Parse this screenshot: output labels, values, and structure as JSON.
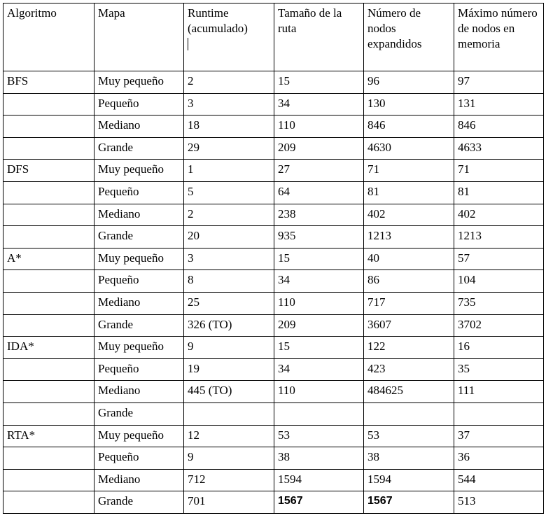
{
  "headers": [
    "Algoritmo",
    "Mapa",
    "Runtime (acumulado)",
    "Tamaño de la ruta",
    "Número de nodos expandidos",
    "Máximo número de nodos en memoria"
  ],
  "groups": [
    {
      "algorithm": "BFS",
      "rows": [
        {
          "map": "Muy pequeño",
          "runtime": "2",
          "path": "15",
          "expanded": "96",
          "memory": "97"
        },
        {
          "map": "Pequeño",
          "runtime": "3",
          "path": "34",
          "expanded": "130",
          "memory": "131"
        },
        {
          "map": "Mediano",
          "runtime": "18",
          "path": "110",
          "expanded": "846",
          "memory": "846"
        },
        {
          "map": "Grande",
          "runtime": "29",
          "path": "209",
          "expanded": "4630",
          "memory": "4633"
        }
      ]
    },
    {
      "algorithm": "DFS",
      "rows": [
        {
          "map": "Muy pequeño",
          "runtime": "1",
          "path": "27",
          "expanded": "71",
          "memory": "71"
        },
        {
          "map": "Pequeño",
          "runtime": "5",
          "path": "64",
          "expanded": "81",
          "memory": "81"
        },
        {
          "map": "Mediano",
          "runtime": "2",
          "path": "238",
          "expanded": "402",
          "memory": "402"
        },
        {
          "map": "Grande",
          "runtime": "20",
          "path": "935",
          "expanded": "1213",
          "memory": "1213"
        }
      ]
    },
    {
      "algorithm": "A*",
      "rows": [
        {
          "map": "Muy pequeño",
          "runtime": "3",
          "path": "15",
          "expanded": "40",
          "memory": "57"
        },
        {
          "map": "Pequeño",
          "runtime": "8",
          "path": "34",
          "expanded": "86",
          "memory": "104"
        },
        {
          "map": "Mediano",
          "runtime": "25",
          "path": "110",
          "expanded": "717",
          "memory": "735"
        },
        {
          "map": "Grande",
          "runtime": "326 (TO)",
          "path": "209",
          "expanded": "3607",
          "memory": "3702"
        }
      ]
    },
    {
      "algorithm": "IDA*",
      "rows": [
        {
          "map": "Muy pequeño",
          "runtime": "9",
          "path": "15",
          "expanded": "122",
          "memory": "16"
        },
        {
          "map": "Pequeño",
          "runtime": "19",
          "path": "34",
          "expanded": "423",
          "memory": "35"
        },
        {
          "map": "Mediano",
          "runtime": "445 (TO)",
          "path": "110",
          "expanded": "484625",
          "memory": "111"
        },
        {
          "map": "Grande",
          "runtime": "",
          "path": "",
          "expanded": "",
          "memory": ""
        }
      ]
    },
    {
      "algorithm": "RTA*",
      "rows": [
        {
          "map": "Muy pequeño",
          "runtime": "12",
          "path": "53",
          "expanded": "53",
          "memory": "37"
        },
        {
          "map": "Pequeño",
          "runtime": "9",
          "path": "38",
          "expanded": "38",
          "memory": "36"
        },
        {
          "map": "Mediano",
          "runtime": "712",
          "path": "1594",
          "expanded": "1594",
          "memory": "544"
        },
        {
          "map": "Grande",
          "runtime": "701",
          "path": "1567",
          "expanded": "1567",
          "memory": "513"
        }
      ]
    }
  ]
}
